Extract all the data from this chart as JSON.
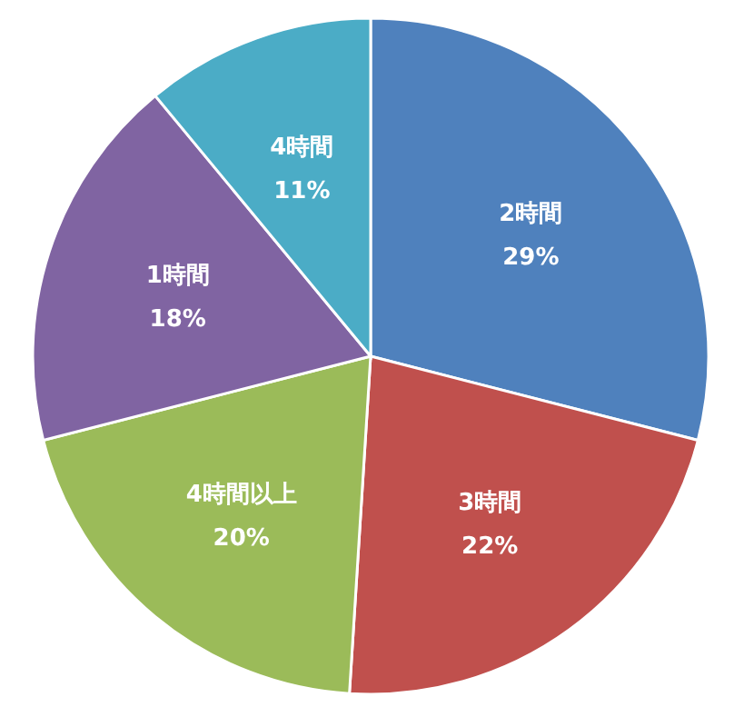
{
  "chart_data": {
    "type": "pie",
    "categories": [
      "2時間",
      "3時間",
      "4時間以上",
      "1時間",
      "4時間"
    ],
    "values": [
      29,
      22,
      20,
      18,
      11
    ],
    "colors": [
      "#4f81bd",
      "#c0504d",
      "#9bbb59",
      "#8064a2",
      "#4bacc6"
    ],
    "value_labels": [
      "29%",
      "22%",
      "20%",
      "18%",
      "11%"
    ]
  }
}
